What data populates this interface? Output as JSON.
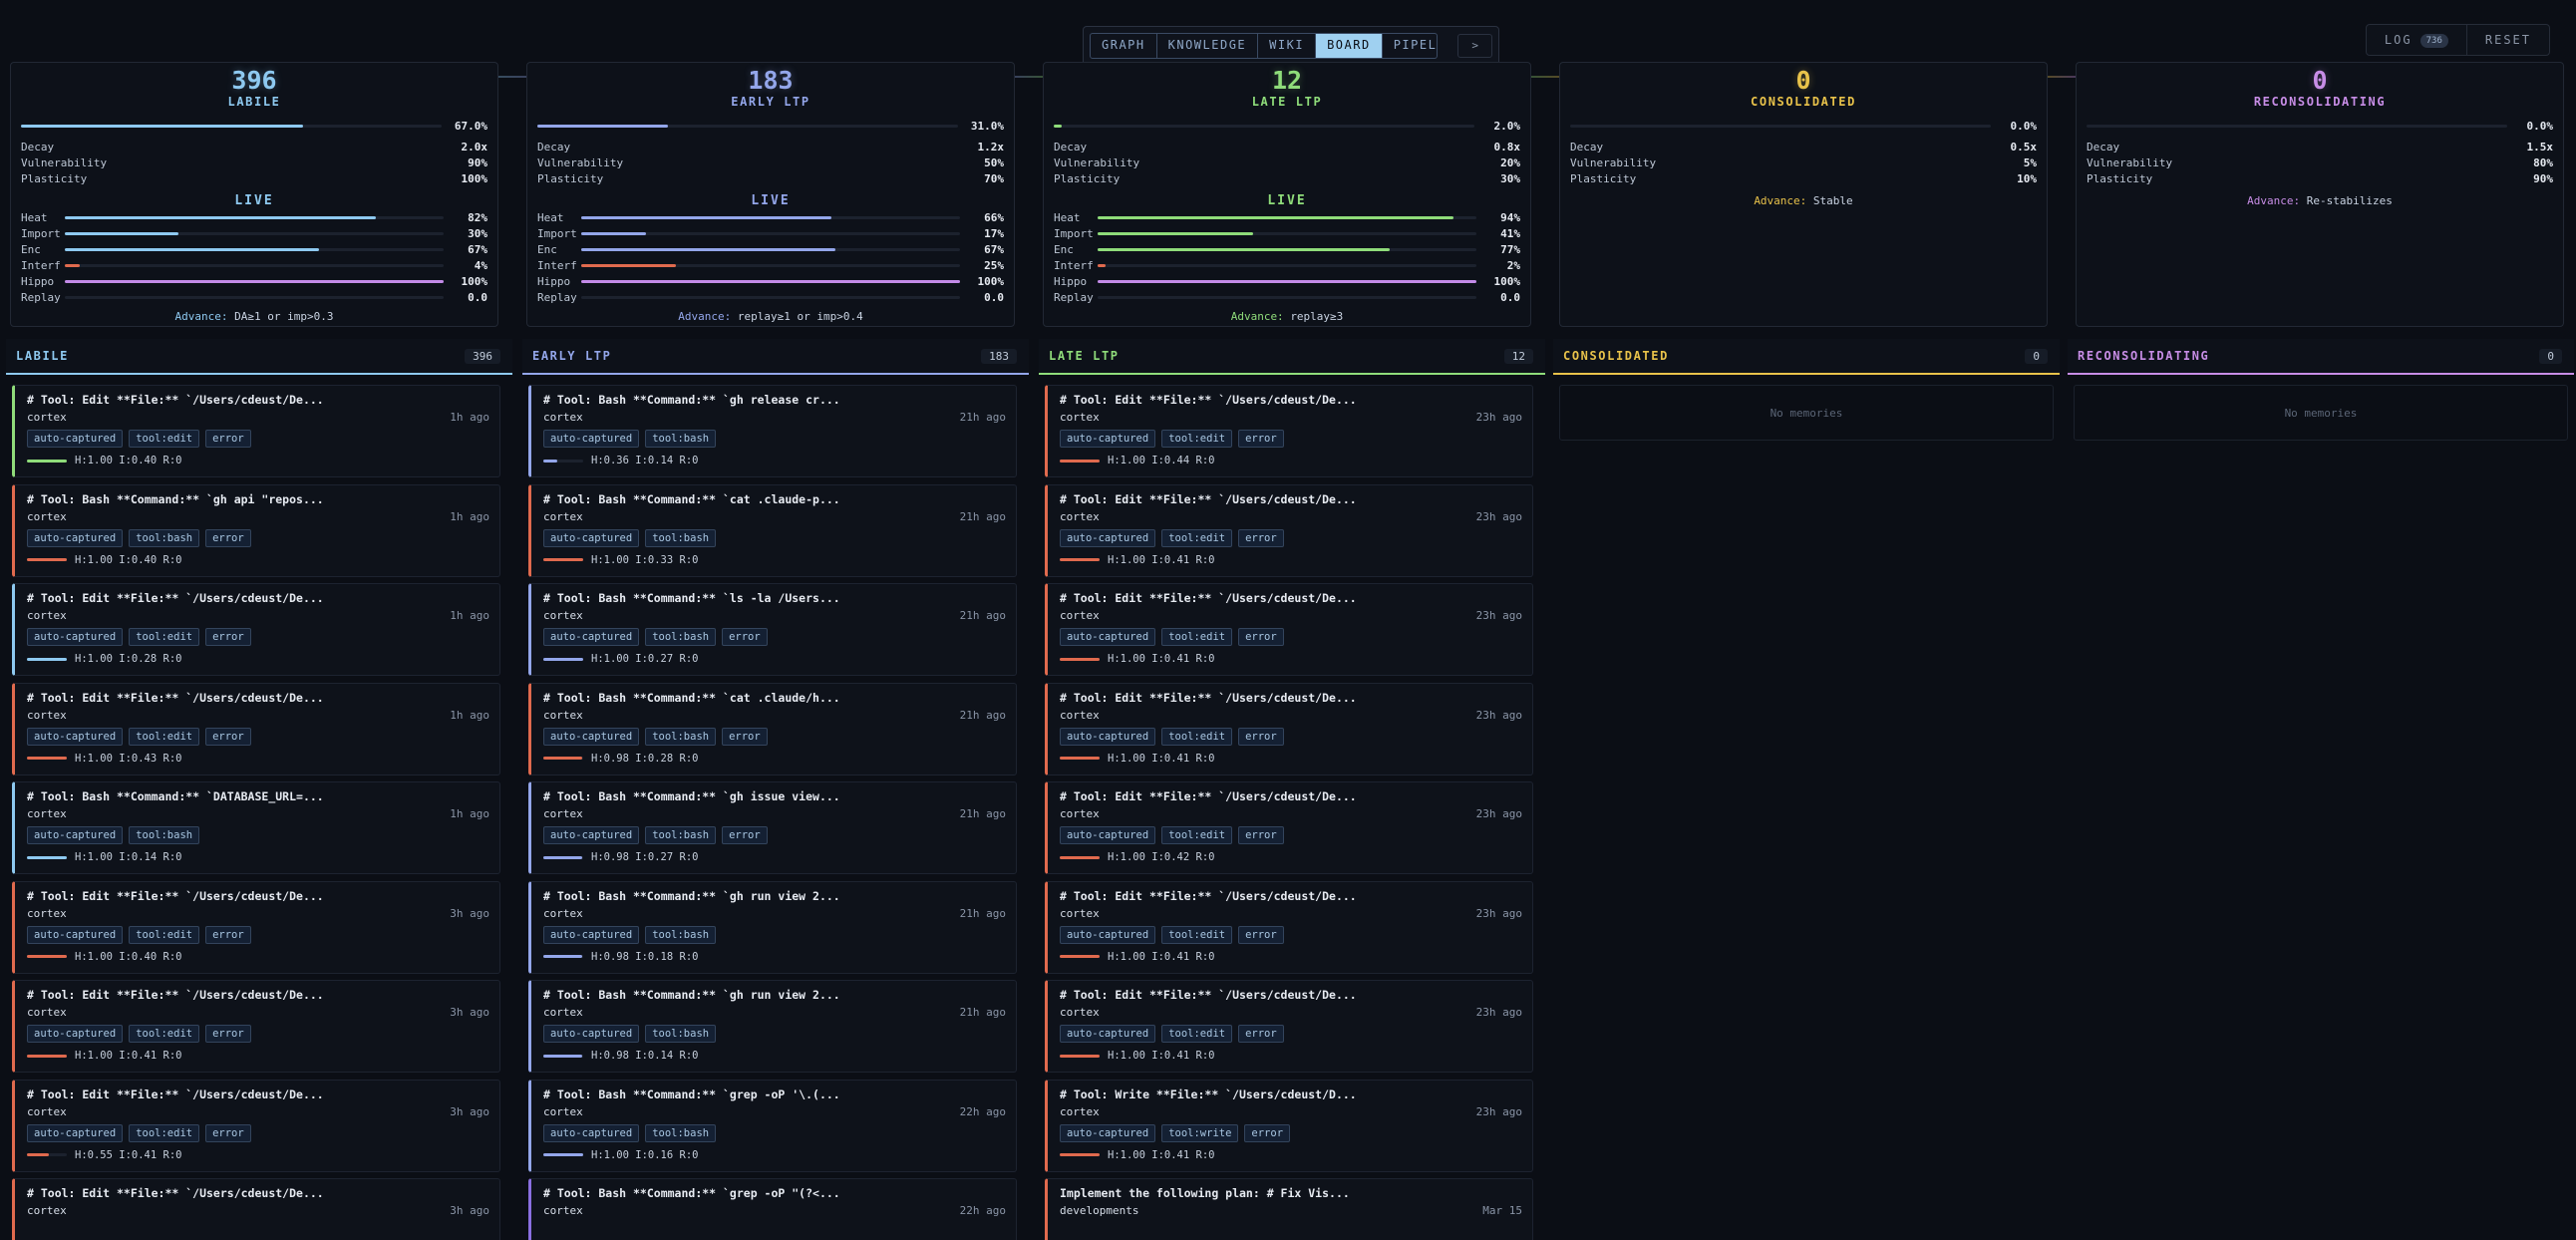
{
  "nav": {
    "tabs": [
      "GRAPH",
      "KNOWLEDGE",
      "WIKI",
      "BOARD",
      "PIPELINE"
    ],
    "active": "BOARD",
    "more": ">"
  },
  "top_right": {
    "log_label": "LOG",
    "log_badge": "736",
    "reset_label": "RESET"
  },
  "stages": [
    {
      "count": "396",
      "name": "LABILE",
      "color": "#8ec9f0",
      "progress": 0.67,
      "progress_label": "67.0%",
      "params": [
        {
          "label": "Decay",
          "value": "2.0x"
        },
        {
          "label": "Vulnerability",
          "value": "90%"
        },
        {
          "label": "Plasticity",
          "value": "100%"
        }
      ],
      "live": {
        "title": "LIVE",
        "metrics": [
          {
            "label": "Heat",
            "value": "82%",
            "level": 0.82,
            "color": "#8ec9f0"
          },
          {
            "label": "Import",
            "value": "30%",
            "level": 0.3,
            "color": "#8ec9f0"
          },
          {
            "label": "Enc",
            "value": "67%",
            "level": 0.67,
            "color": "#8ec9f0"
          },
          {
            "label": "Interf",
            "value": "4%",
            "level": 0.04,
            "color": "#e06a4e"
          },
          {
            "label": "Hippo",
            "value": "100%",
            "level": 1.0,
            "color": "#c38be8"
          },
          {
            "label": "Replay",
            "value": "0.0",
            "level": 0,
            "color": "#8ec9f0"
          }
        ]
      },
      "advance_label": "Advance:",
      "advance_text": "DA≥1 or imp>0.3"
    },
    {
      "count": "183",
      "name": "EARLY LTP",
      "color": "#93a6ea",
      "progress": 0.31,
      "progress_label": "31.0%",
      "params": [
        {
          "label": "Decay",
          "value": "1.2x"
        },
        {
          "label": "Vulnerability",
          "value": "50%"
        },
        {
          "label": "Plasticity",
          "value": "70%"
        }
      ],
      "live": {
        "title": "LIVE",
        "metrics": [
          {
            "label": "Heat",
            "value": "66%",
            "level": 0.66,
            "color": "#93a6ea"
          },
          {
            "label": "Import",
            "value": "17%",
            "level": 0.17,
            "color": "#93a6ea"
          },
          {
            "label": "Enc",
            "value": "67%",
            "level": 0.67,
            "color": "#93a6ea"
          },
          {
            "label": "Interf",
            "value": "25%",
            "level": 0.25,
            "color": "#e06a4e"
          },
          {
            "label": "Hippo",
            "value": "100%",
            "level": 1.0,
            "color": "#c38be8"
          },
          {
            "label": "Replay",
            "value": "0.0",
            "level": 0,
            "color": "#93a6ea"
          }
        ]
      },
      "advance_label": "Advance:",
      "advance_text": "replay≥1 or imp>0.4"
    },
    {
      "count": "12",
      "name": "LATE LTP",
      "color": "#8fdc7a",
      "progress": 0.02,
      "progress_label": "2.0%",
      "params": [
        {
          "label": "Decay",
          "value": "0.8x"
        },
        {
          "label": "Vulnerability",
          "value": "20%"
        },
        {
          "label": "Plasticity",
          "value": "30%"
        }
      ],
      "live": {
        "title": "LIVE",
        "metrics": [
          {
            "label": "Heat",
            "value": "94%",
            "level": 0.94,
            "color": "#8fdc7a"
          },
          {
            "label": "Import",
            "value": "41%",
            "level": 0.41,
            "color": "#8fdc7a"
          },
          {
            "label": "Enc",
            "value": "77%",
            "level": 0.77,
            "color": "#8fdc7a"
          },
          {
            "label": "Interf",
            "value": "2%",
            "level": 0.02,
            "color": "#e06a4e"
          },
          {
            "label": "Hippo",
            "value": "100%",
            "level": 1.0,
            "color": "#c38be8"
          },
          {
            "label": "Replay",
            "value": "0.0",
            "level": 0,
            "color": "#8fdc7a"
          }
        ]
      },
      "advance_label": "Advance:",
      "advance_text": "replay≥3"
    },
    {
      "count": "0",
      "name": "CONSOLIDATED",
      "color": "#e8c24a",
      "progress": 0.0,
      "progress_label": "0.0%",
      "params": [
        {
          "label": "Decay",
          "value": "0.5x"
        },
        {
          "label": "Vulnerability",
          "value": "5%"
        },
        {
          "label": "Plasticity",
          "value": "10%"
        }
      ],
      "advance_label": "Advance:",
      "advance_text": "Stable"
    },
    {
      "count": "0",
      "name": "RECONSOLIDATING",
      "color": "#c78de6",
      "progress": 0.0,
      "progress_label": "0.0%",
      "params": [
        {
          "label": "Decay",
          "value": "1.5x"
        },
        {
          "label": "Vulnerability",
          "value": "80%"
        },
        {
          "label": "Plasticity",
          "value": "90%"
        }
      ],
      "advance_label": "Advance:",
      "advance_text": "Re-stabilizes"
    }
  ],
  "columns": [
    {
      "title": "LABILE",
      "count": "396",
      "color": "#8ec9f0",
      "cards": [
        {
          "title": "# Tool: Edit **File:** `/Users/cdeust/De...",
          "project": "cortex",
          "time": "1h ago",
          "tags": [
            "auto-captured",
            "tool:edit",
            "error"
          ],
          "stats": "H:1.00 I:0.40 R:0",
          "accent": "#8fdc7a",
          "level": 1.0
        },
        {
          "title": "# Tool: Bash **Command:** `gh api \"repos...",
          "project": "cortex",
          "time": "1h ago",
          "tags": [
            "auto-captured",
            "tool:bash",
            "error"
          ],
          "stats": "H:1.00 I:0.40 R:0",
          "accent": "#e06a4e",
          "level": 1.0
        },
        {
          "title": "# Tool: Edit **File:** `/Users/cdeust/De...",
          "project": "cortex",
          "time": "1h ago",
          "tags": [
            "auto-captured",
            "tool:edit",
            "error"
          ],
          "stats": "H:1.00 I:0.28 R:0",
          "accent": "#8ec9f0",
          "level": 1.0
        },
        {
          "title": "# Tool: Edit **File:** `/Users/cdeust/De...",
          "project": "cortex",
          "time": "1h ago",
          "tags": [
            "auto-captured",
            "tool:edit",
            "error"
          ],
          "stats": "H:1.00 I:0.43 R:0",
          "accent": "#e06a4e",
          "level": 1.0
        },
        {
          "title": "# Tool: Bash **Command:** `DATABASE_URL=...",
          "project": "cortex",
          "time": "1h ago",
          "tags": [
            "auto-captured",
            "tool:bash"
          ],
          "stats": "H:1.00 I:0.14 R:0",
          "accent": "#8ec9f0",
          "level": 1.0
        },
        {
          "title": "# Tool: Edit **File:** `/Users/cdeust/De...",
          "project": "cortex",
          "time": "3h ago",
          "tags": [
            "auto-captured",
            "tool:edit",
            "error"
          ],
          "stats": "H:1.00 I:0.40 R:0",
          "accent": "#e06a4e",
          "level": 1.0
        },
        {
          "title": "# Tool: Edit **File:** `/Users/cdeust/De...",
          "project": "cortex",
          "time": "3h ago",
          "tags": [
            "auto-captured",
            "tool:edit",
            "error"
          ],
          "stats": "H:1.00 I:0.41 R:0",
          "accent": "#e06a4e",
          "level": 1.0
        },
        {
          "title": "# Tool: Edit **File:** `/Users/cdeust/De...",
          "project": "cortex",
          "time": "3h ago",
          "tags": [
            "auto-captured",
            "tool:edit",
            "error"
          ],
          "stats": "H:0.55 I:0.41 R:0",
          "accent": "#e06a4e",
          "level": 0.55
        },
        {
          "title": "# Tool: Edit **File:** `/Users/cdeust/De...",
          "project": "cortex",
          "time": "3h ago",
          "tags": [],
          "stats": "",
          "accent": "#e06a4e",
          "level": 1.0
        }
      ]
    },
    {
      "title": "EARLY LTP",
      "count": "183",
      "color": "#93a6ea",
      "cards": [
        {
          "title": "# Tool: Bash **Command:** `gh release cr...",
          "project": "cortex",
          "time": "21h ago",
          "tags": [
            "auto-captured",
            "tool:bash"
          ],
          "stats": "H:0.36 I:0.14 R:0",
          "accent": "#93a6ea",
          "level": 0.36
        },
        {
          "title": "# Tool: Bash **Command:** `cat .claude-p...",
          "project": "cortex",
          "time": "21h ago",
          "tags": [
            "auto-captured",
            "tool:bash"
          ],
          "stats": "H:1.00 I:0.33 R:0",
          "accent": "#e06a4e",
          "level": 1.0
        },
        {
          "title": "# Tool: Bash **Command:** `ls -la /Users...",
          "project": "cortex",
          "time": "21h ago",
          "tags": [
            "auto-captured",
            "tool:bash",
            "error"
          ],
          "stats": "H:1.00 I:0.27 R:0",
          "accent": "#93a6ea",
          "level": 1.0
        },
        {
          "title": "# Tool: Bash **Command:** `cat .claude/h...",
          "project": "cortex",
          "time": "21h ago",
          "tags": [
            "auto-captured",
            "tool:bash",
            "error"
          ],
          "stats": "H:0.98 I:0.28 R:0",
          "accent": "#e06a4e",
          "level": 0.98
        },
        {
          "title": "# Tool: Bash **Command:** `gh issue view...",
          "project": "cortex",
          "time": "21h ago",
          "tags": [
            "auto-captured",
            "tool:bash",
            "error"
          ],
          "stats": "H:0.98 I:0.27 R:0",
          "accent": "#93a6ea",
          "level": 0.98
        },
        {
          "title": "# Tool: Bash **Command:** `gh run view 2...",
          "project": "cortex",
          "time": "21h ago",
          "tags": [
            "auto-captured",
            "tool:bash"
          ],
          "stats": "H:0.98 I:0.18 R:0",
          "accent": "#93a6ea",
          "level": 0.98
        },
        {
          "title": "# Tool: Bash **Command:** `gh run view 2...",
          "project": "cortex",
          "time": "21h ago",
          "tags": [
            "auto-captured",
            "tool:bash"
          ],
          "stats": "H:0.98 I:0.14 R:0",
          "accent": "#93a6ea",
          "level": 0.98
        },
        {
          "title": "# Tool: Bash **Command:** `grep -oP '\\.(...",
          "project": "cortex",
          "time": "22h ago",
          "tags": [
            "auto-captured",
            "tool:bash"
          ],
          "stats": "H:1.00 I:0.16 R:0",
          "accent": "#93a6ea",
          "level": 1.0
        },
        {
          "title": "# Tool: Bash **Command:** `grep -oP \"(?<...",
          "project": "cortex",
          "time": "22h ago",
          "tags": [],
          "stats": "",
          "accent": "#8a6fe0",
          "level": 1.0
        }
      ]
    },
    {
      "title": "LATE LTP",
      "count": "12",
      "color": "#8fdc7a",
      "cards": [
        {
          "title": "# Tool: Edit **File:** `/Users/cdeust/De...",
          "project": "cortex",
          "time": "23h ago",
          "tags": [
            "auto-captured",
            "tool:edit",
            "error"
          ],
          "stats": "H:1.00 I:0.44 R:0",
          "accent": "#e06a4e",
          "level": 1.0
        },
        {
          "title": "# Tool: Edit **File:** `/Users/cdeust/De...",
          "project": "cortex",
          "time": "23h ago",
          "tags": [
            "auto-captured",
            "tool:edit",
            "error"
          ],
          "stats": "H:1.00 I:0.41 R:0",
          "accent": "#e06a4e",
          "level": 1.0
        },
        {
          "title": "# Tool: Edit **File:** `/Users/cdeust/De...",
          "project": "cortex",
          "time": "23h ago",
          "tags": [
            "auto-captured",
            "tool:edit",
            "error"
          ],
          "stats": "H:1.00 I:0.41 R:0",
          "accent": "#e06a4e",
          "level": 1.0
        },
        {
          "title": "# Tool: Edit **File:** `/Users/cdeust/De...",
          "project": "cortex",
          "time": "23h ago",
          "tags": [
            "auto-captured",
            "tool:edit",
            "error"
          ],
          "stats": "H:1.00 I:0.41 R:0",
          "accent": "#e06a4e",
          "level": 1.0
        },
        {
          "title": "# Tool: Edit **File:** `/Users/cdeust/De...",
          "project": "cortex",
          "time": "23h ago",
          "tags": [
            "auto-captured",
            "tool:edit",
            "error"
          ],
          "stats": "H:1.00 I:0.42 R:0",
          "accent": "#e06a4e",
          "level": 1.0
        },
        {
          "title": "# Tool: Edit **File:** `/Users/cdeust/De...",
          "project": "cortex",
          "time": "23h ago",
          "tags": [
            "auto-captured",
            "tool:edit",
            "error"
          ],
          "stats": "H:1.00 I:0.41 R:0",
          "accent": "#e06a4e",
          "level": 1.0
        },
        {
          "title": "# Tool: Edit **File:** `/Users/cdeust/De...",
          "project": "cortex",
          "time": "23h ago",
          "tags": [
            "auto-captured",
            "tool:edit",
            "error"
          ],
          "stats": "H:1.00 I:0.41 R:0",
          "accent": "#e06a4e",
          "level": 1.0
        },
        {
          "title": "# Tool: Write **File:** `/Users/cdeust/D...",
          "project": "cortex",
          "time": "23h ago",
          "tags": [
            "auto-captured",
            "tool:write",
            "error"
          ],
          "stats": "H:1.00 I:0.41 R:0",
          "accent": "#e06a4e",
          "level": 1.0
        },
        {
          "title": "Implement the following plan: # Fix Vis...",
          "project": "developments",
          "time": "Mar 15",
          "tags": [],
          "stats": "",
          "accent": "#e06a4e",
          "level": 1.0
        }
      ]
    },
    {
      "title": "CONSOLIDATED",
      "count": "0",
      "color": "#e8c24a",
      "cards": [],
      "empty": "No memories"
    },
    {
      "title": "RECONSOLIDATING",
      "count": "0",
      "color": "#c78de6",
      "cards": [],
      "empty": "No memories"
    }
  ]
}
